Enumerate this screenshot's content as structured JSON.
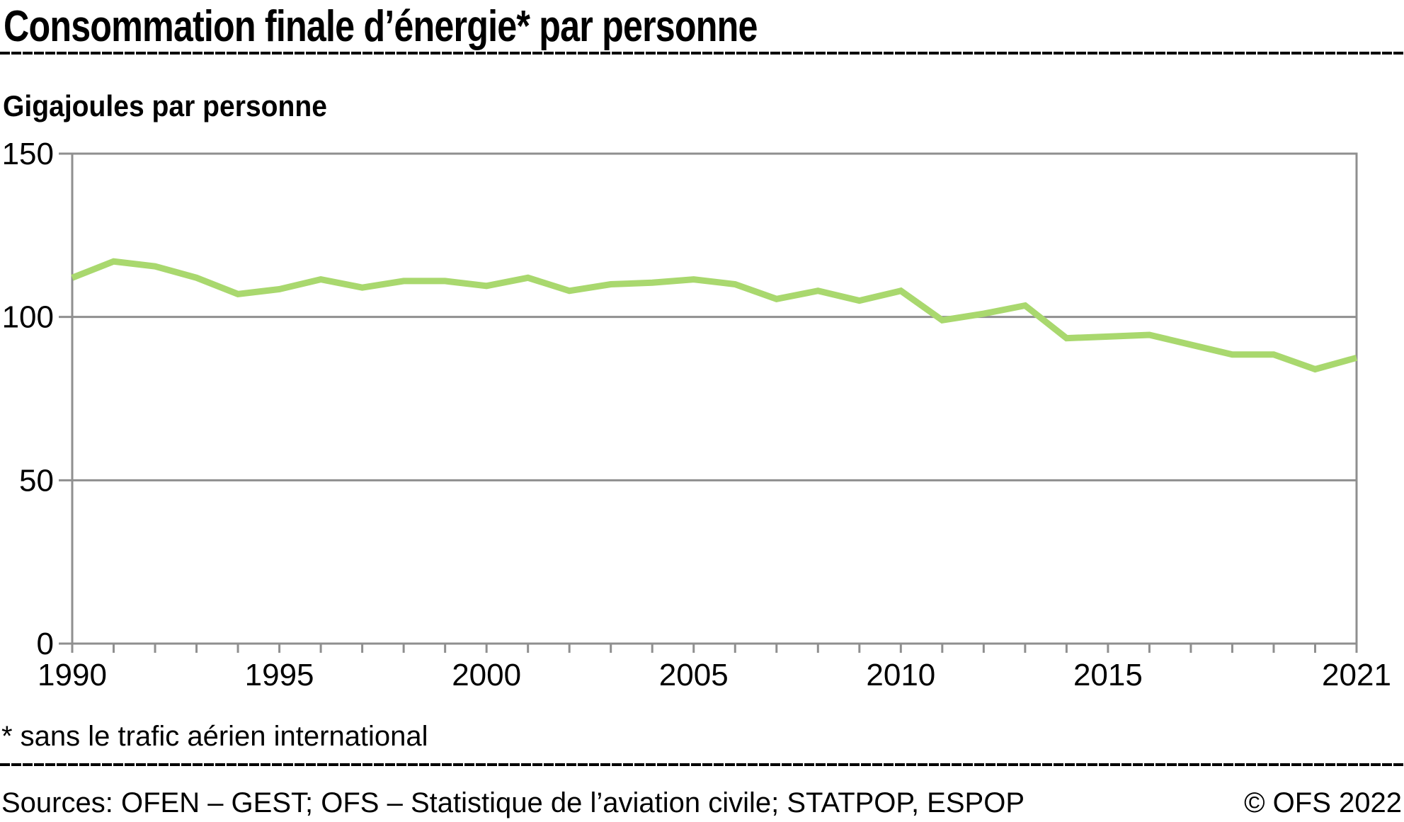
{
  "header": {
    "title": "Consommation finale d’énergie* par personne"
  },
  "subtitle": "Gigajoules par personne",
  "footnote": "* sans le trafic aérien international",
  "footer": {
    "sources": "Sources: OFEN – GEST; OFS – Statistique de l’aviation civile; STATPOP, ESPOP",
    "copyright": "© OFS 2022"
  },
  "colors": {
    "line": "#a9d86e",
    "grid": "#8f8f8f",
    "text": "#000000",
    "background": "#ffffff"
  },
  "chart_data": {
    "type": "line",
    "title": "Consommation finale d’énergie* par personne",
    "ylabel": "Gigajoules par personne",
    "xlabel": "",
    "x": [
      1990,
      1991,
      1992,
      1993,
      1994,
      1995,
      1996,
      1997,
      1998,
      1999,
      2000,
      2001,
      2002,
      2003,
      2004,
      2005,
      2006,
      2007,
      2008,
      2009,
      2010,
      2011,
      2012,
      2013,
      2014,
      2015,
      2016,
      2017,
      2018,
      2019,
      2020,
      2021
    ],
    "series": [
      {
        "name": "Consommation finale d’énergie par personne (gigajoules)",
        "values": [
          112,
          117,
          115.5,
          112,
          107,
          108.5,
          111.5,
          109,
          111,
          111,
          109.5,
          112,
          108,
          110,
          110.5,
          111.5,
          110,
          105.5,
          108,
          105,
          108,
          99,
          101,
          103.5,
          93.5,
          94,
          94.5,
          91.5,
          88.5,
          88.5,
          84,
          87.5
        ]
      }
    ],
    "ylim": [
      0,
      150
    ],
    "yticks": [
      0,
      50,
      100,
      150
    ],
    "xticks": [
      1990,
      1995,
      2000,
      2005,
      2010,
      2015,
      2021
    ],
    "grid": true,
    "legend_position": "none"
  }
}
